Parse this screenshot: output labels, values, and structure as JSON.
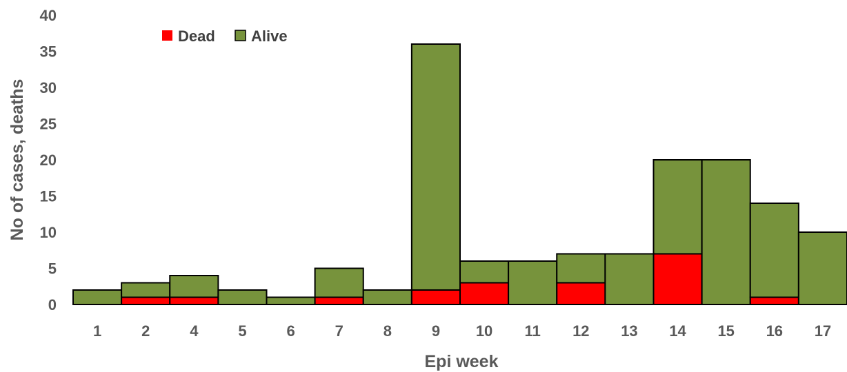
{
  "chart_data": {
    "type": "bar",
    "stacked": true,
    "categories": [
      "1",
      "2",
      "4",
      "5",
      "6",
      "7",
      "8",
      "9",
      "10",
      "11",
      "12",
      "13",
      "14",
      "15",
      "16",
      "17"
    ],
    "series": [
      {
        "name": "Dead",
        "color": "#ff0000",
        "values": [
          0,
          1,
          1,
          0,
          0,
          1,
          0,
          2,
          3,
          0,
          3,
          0,
          7,
          0,
          1,
          0
        ]
      },
      {
        "name": "Alive",
        "color": "#77933c",
        "values": [
          2,
          2,
          3,
          2,
          1,
          4,
          2,
          34,
          3,
          6,
          4,
          7,
          13,
          20,
          13,
          10
        ]
      }
    ],
    "xlabel": "Epi week",
    "ylabel": "No of cases, deaths",
    "ylim": [
      0,
      40
    ],
    "yticks": [
      0,
      5,
      10,
      15,
      20,
      25,
      30,
      35,
      40
    ],
    "grid": false,
    "legend_position": "top-left"
  }
}
